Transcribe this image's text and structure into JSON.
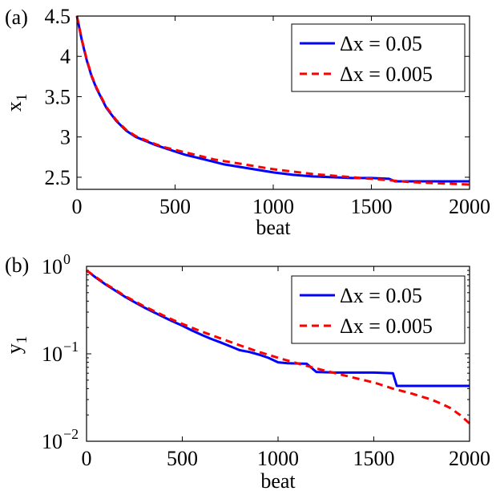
{
  "colors": {
    "series_a": "#0000ff",
    "series_b": "#ff0000"
  },
  "chart_data": [
    {
      "type": "line",
      "panel_label": "(a)",
      "xlabel": "beat",
      "ylabel": "x",
      "ylabel_sub": "1",
      "xlim": [
        0,
        2000
      ],
      "ylim": [
        2.35,
        4.5
      ],
      "yscale": "linear",
      "xticks": [
        0,
        500,
        1000,
        1500,
        2000
      ],
      "xtick_labels": [
        "0",
        "500",
        "1000",
        "1500",
        "2000"
      ],
      "yticks": [
        2.5,
        3,
        3.5,
        4,
        4.5
      ],
      "ytick_labels": [
        "2.5",
        "3",
        "3.5",
        "4",
        "4.5"
      ],
      "grid": false,
      "legend_position": "top-right",
      "series": [
        {
          "name": "Δx = 0.05",
          "style": "solid",
          "x": [
            0,
            25,
            50,
            75,
            100,
            150,
            200,
            250,
            300,
            350,
            400,
            450,
            500,
            550,
            600,
            650,
            700,
            750,
            800,
            900,
            1000,
            1100,
            1200,
            1300,
            1400,
            1500,
            1590,
            1620,
            1700,
            1800,
            1900,
            2000
          ],
          "y": [
            4.5,
            4.2,
            3.95,
            3.75,
            3.6,
            3.36,
            3.2,
            3.08,
            3.0,
            2.95,
            2.9,
            2.86,
            2.82,
            2.78,
            2.75,
            2.72,
            2.69,
            2.66,
            2.64,
            2.6,
            2.56,
            2.53,
            2.51,
            2.5,
            2.49,
            2.49,
            2.48,
            2.45,
            2.45,
            2.45,
            2.45,
            2.45
          ]
        },
        {
          "name": "Δx = 0.005",
          "style": "dashed",
          "x": [
            0,
            25,
            50,
            75,
            100,
            150,
            200,
            250,
            300,
            350,
            400,
            450,
            500,
            550,
            600,
            650,
            700,
            750,
            800,
            900,
            1000,
            1100,
            1200,
            1300,
            1400,
            1500,
            1600,
            1700,
            1800,
            1900,
            2000
          ],
          "y": [
            4.5,
            4.21,
            3.96,
            3.76,
            3.61,
            3.37,
            3.21,
            3.09,
            3.01,
            2.96,
            2.91,
            2.87,
            2.84,
            2.81,
            2.78,
            2.75,
            2.72,
            2.7,
            2.68,
            2.64,
            2.6,
            2.57,
            2.54,
            2.52,
            2.5,
            2.48,
            2.46,
            2.44,
            2.43,
            2.42,
            2.41
          ]
        }
      ]
    },
    {
      "type": "line",
      "panel_label": "(b)",
      "xlabel": "beat",
      "ylabel": "y",
      "ylabel_sub": "1",
      "xlim": [
        0,
        2000
      ],
      "ylim": [
        0.01,
        1
      ],
      "yscale": "log",
      "xticks": [
        0,
        500,
        1000,
        1500,
        2000
      ],
      "xtick_labels": [
        "0",
        "500",
        "1000",
        "1500",
        "2000"
      ],
      "yticks": [
        1,
        0.1,
        0.01
      ],
      "ytick_bases": [
        "10",
        "10",
        "10"
      ],
      "ytick_exponents": [
        "0",
        "−1",
        "−2"
      ],
      "grid": false,
      "legend_position": "top-right",
      "series": [
        {
          "name": "Δx = 0.05",
          "style": "solid",
          "x": [
            0,
            50,
            100,
            150,
            200,
            250,
            300,
            350,
            400,
            450,
            500,
            550,
            600,
            650,
            700,
            750,
            800,
            850,
            900,
            950,
            1000,
            1050,
            1150,
            1200,
            1300,
            1400,
            1500,
            1600,
            1620,
            1700,
            1800,
            1900,
            2000
          ],
          "y": [
            0.9,
            0.74,
            0.62,
            0.53,
            0.45,
            0.39,
            0.34,
            0.3,
            0.265,
            0.235,
            0.21,
            0.185,
            0.165,
            0.148,
            0.135,
            0.122,
            0.11,
            0.105,
            0.098,
            0.09,
            0.08,
            0.078,
            0.077,
            0.062,
            0.061,
            0.061,
            0.061,
            0.06,
            0.043,
            0.043,
            0.043,
            0.043,
            0.043
          ]
        },
        {
          "name": "Δx = 0.005",
          "style": "dashed",
          "x": [
            0,
            50,
            100,
            150,
            200,
            250,
            300,
            350,
            400,
            450,
            500,
            600,
            700,
            800,
            900,
            1000,
            1100,
            1200,
            1300,
            1400,
            1500,
            1600,
            1700,
            1800,
            1850,
            1900,
            1950,
            2000
          ],
          "y": [
            0.9,
            0.75,
            0.63,
            0.54,
            0.46,
            0.4,
            0.35,
            0.31,
            0.275,
            0.245,
            0.22,
            0.18,
            0.15,
            0.125,
            0.105,
            0.09,
            0.078,
            0.068,
            0.06,
            0.053,
            0.047,
            0.04,
            0.035,
            0.03,
            0.027,
            0.024,
            0.02,
            0.016
          ]
        }
      ]
    }
  ]
}
